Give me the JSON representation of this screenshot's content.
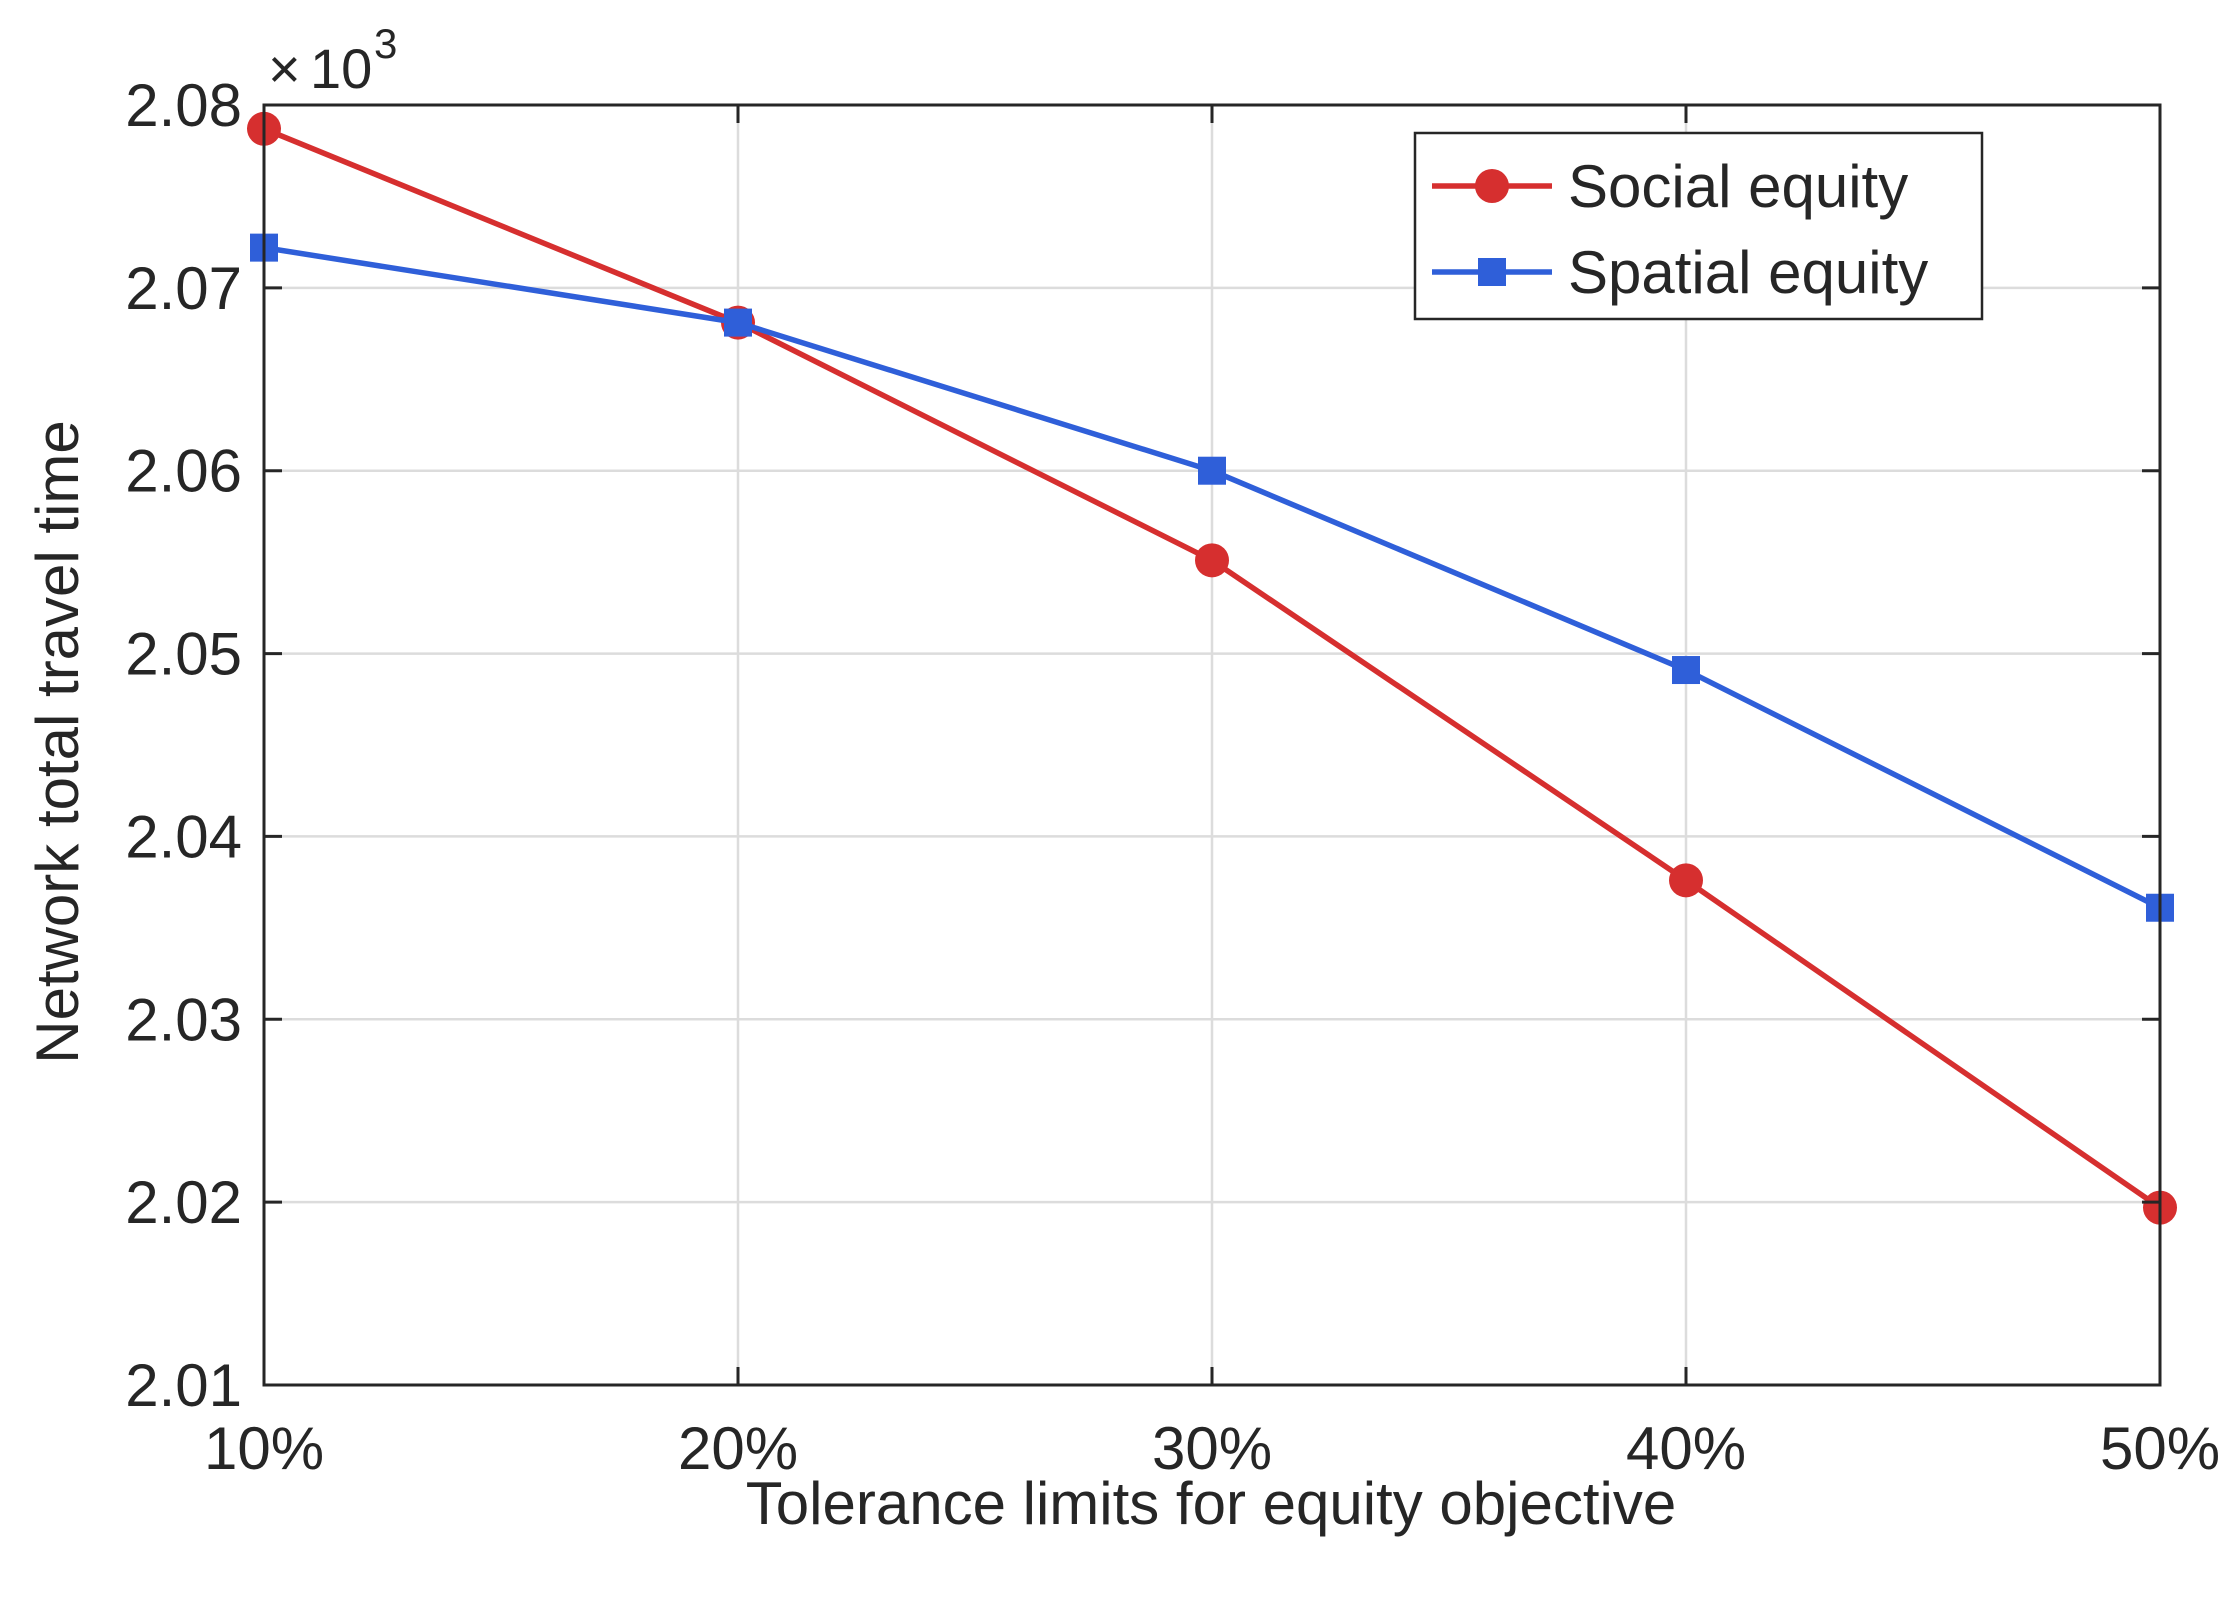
{
  "chart_data": {
    "type": "line",
    "xlabel": "Tolerance limits for equity objective",
    "ylabel": "Network total travel time",
    "categories": [
      "10%",
      "20%",
      "30%",
      "40%",
      "50%"
    ],
    "x": [
      10,
      20,
      30,
      40,
      50
    ],
    "xlim": [
      10,
      50
    ],
    "ylim": [
      2.01,
      2.08
    ],
    "yticks": [
      2.01,
      2.02,
      2.03,
      2.04,
      2.05,
      2.06,
      2.07,
      2.08
    ],
    "ytick_labels": [
      "2.01",
      "2.02",
      "2.03",
      "2.04",
      "2.05",
      "2.06",
      "2.07",
      "2.08"
    ],
    "y_exponent_base": "10",
    "y_exponent_power": "3",
    "grid": true,
    "legend_position": "top-right",
    "series": [
      {
        "name": "Social equity",
        "marker": "circle",
        "color": "#d62f2f",
        "values": [
          2.0787,
          2.0681,
          2.0551,
          2.0376,
          2.0197
        ]
      },
      {
        "name": "Spatial equity",
        "marker": "square",
        "color": "#2f5fd9",
        "values": [
          2.0722,
          2.0681,
          2.06,
          2.0491,
          2.0361
        ]
      }
    ]
  }
}
